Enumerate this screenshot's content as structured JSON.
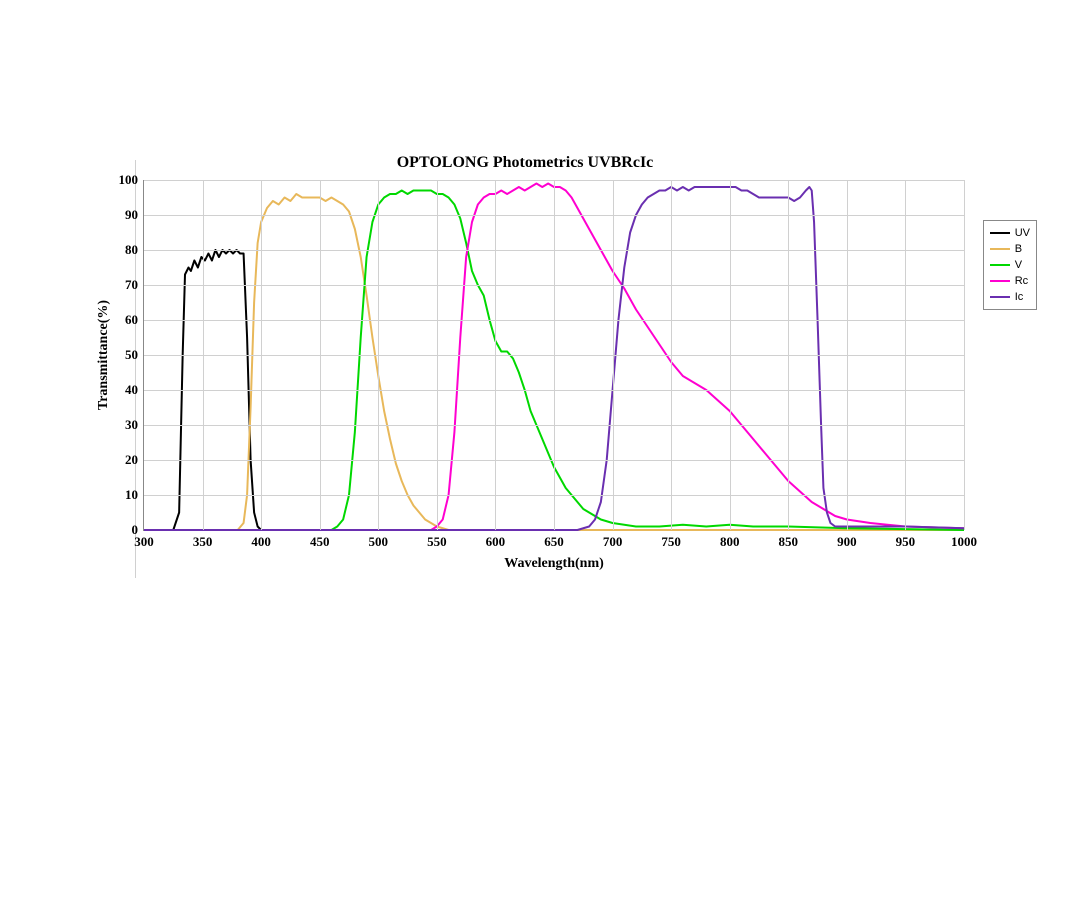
{
  "chart": {
    "type": "line",
    "title": "OPTOLONG Photometrics UVBRcIc",
    "title_fontsize": 16,
    "xlabel": "Wavelength(nm)",
    "ylabel": "Transmittance(%)",
    "label_fontsize": 14,
    "tick_fontsize": 13,
    "background_color": "#ffffff",
    "grid_color": "#d0d0d0",
    "axis_color": "#888888",
    "line_width": 2,
    "xlim": [
      300,
      1000
    ],
    "ylim": [
      0,
      100
    ],
    "xtick_step": 50,
    "ytick_step": 10,
    "xticks": [
      300,
      350,
      400,
      450,
      500,
      550,
      600,
      650,
      700,
      750,
      800,
      850,
      900,
      950,
      1000
    ],
    "yticks": [
      0,
      10,
      20,
      30,
      40,
      50,
      60,
      70,
      80,
      90,
      100
    ],
    "legend_position": "right",
    "series": [
      {
        "label": "UV",
        "color": "#000000",
        "points": [
          [
            300,
            0
          ],
          [
            320,
            0
          ],
          [
            325,
            0
          ],
          [
            330,
            5
          ],
          [
            333,
            50
          ],
          [
            335,
            73
          ],
          [
            338,
            75
          ],
          [
            340,
            74
          ],
          [
            343,
            77
          ],
          [
            346,
            75
          ],
          [
            349,
            78
          ],
          [
            352,
            77
          ],
          [
            355,
            79
          ],
          [
            358,
            77
          ],
          [
            361,
            80
          ],
          [
            364,
            78
          ],
          [
            367,
            80
          ],
          [
            370,
            79
          ],
          [
            373,
            80
          ],
          [
            376,
            79
          ],
          [
            379,
            80
          ],
          [
            382,
            79
          ],
          [
            385,
            79
          ],
          [
            388,
            55
          ],
          [
            391,
            20
          ],
          [
            394,
            5
          ],
          [
            397,
            1
          ],
          [
            400,
            0
          ],
          [
            1000,
            0
          ]
        ]
      },
      {
        "label": "B",
        "color": "#e8b85a",
        "points": [
          [
            300,
            0
          ],
          [
            380,
            0
          ],
          [
            385,
            2
          ],
          [
            388,
            10
          ],
          [
            391,
            35
          ],
          [
            394,
            65
          ],
          [
            397,
            82
          ],
          [
            400,
            88
          ],
          [
            405,
            92
          ],
          [
            410,
            94
          ],
          [
            415,
            93
          ],
          [
            420,
            95
          ],
          [
            425,
            94
          ],
          [
            430,
            96
          ],
          [
            435,
            95
          ],
          [
            440,
            95
          ],
          [
            445,
            95
          ],
          [
            450,
            95
          ],
          [
            455,
            94
          ],
          [
            460,
            95
          ],
          [
            465,
            94
          ],
          [
            470,
            93
          ],
          [
            475,
            91
          ],
          [
            480,
            86
          ],
          [
            485,
            78
          ],
          [
            490,
            67
          ],
          [
            495,
            55
          ],
          [
            500,
            44
          ],
          [
            505,
            34
          ],
          [
            510,
            26
          ],
          [
            515,
            19
          ],
          [
            520,
            14
          ],
          [
            525,
            10
          ],
          [
            530,
            7
          ],
          [
            535,
            5
          ],
          [
            540,
            3
          ],
          [
            545,
            2
          ],
          [
            550,
            1
          ],
          [
            560,
            0
          ],
          [
            1000,
            0
          ]
        ]
      },
      {
        "label": "V",
        "color": "#00d800",
        "points": [
          [
            300,
            0
          ],
          [
            460,
            0
          ],
          [
            465,
            1
          ],
          [
            470,
            3
          ],
          [
            475,
            10
          ],
          [
            480,
            28
          ],
          [
            485,
            55
          ],
          [
            490,
            78
          ],
          [
            495,
            88
          ],
          [
            500,
            93
          ],
          [
            505,
            95
          ],
          [
            510,
            96
          ],
          [
            515,
            96
          ],
          [
            520,
            97
          ],
          [
            525,
            96
          ],
          [
            530,
            97
          ],
          [
            535,
            97
          ],
          [
            540,
            97
          ],
          [
            545,
            97
          ],
          [
            550,
            96
          ],
          [
            555,
            96
          ],
          [
            560,
            95
          ],
          [
            565,
            93
          ],
          [
            570,
            89
          ],
          [
            575,
            82
          ],
          [
            580,
            74
          ],
          [
            585,
            70
          ],
          [
            590,
            67
          ],
          [
            595,
            60
          ],
          [
            600,
            54
          ],
          [
            605,
            51
          ],
          [
            610,
            51
          ],
          [
            615,
            49
          ],
          [
            620,
            45
          ],
          [
            625,
            40
          ],
          [
            630,
            34
          ],
          [
            635,
            30
          ],
          [
            640,
            26
          ],
          [
            645,
            22
          ],
          [
            650,
            18
          ],
          [
            655,
            15
          ],
          [
            660,
            12
          ],
          [
            665,
            10
          ],
          [
            670,
            8
          ],
          [
            675,
            6
          ],
          [
            680,
            5
          ],
          [
            685,
            4
          ],
          [
            690,
            3
          ],
          [
            700,
            2
          ],
          [
            720,
            1
          ],
          [
            740,
            1
          ],
          [
            760,
            1.5
          ],
          [
            780,
            1
          ],
          [
            800,
            1.5
          ],
          [
            820,
            1
          ],
          [
            850,
            1
          ],
          [
            900,
            0.5
          ],
          [
            1000,
            0
          ]
        ]
      },
      {
        "label": "Rc",
        "color": "#ff00d0",
        "points": [
          [
            300,
            0
          ],
          [
            545,
            0
          ],
          [
            550,
            1
          ],
          [
            555,
            3
          ],
          [
            560,
            10
          ],
          [
            565,
            28
          ],
          [
            570,
            55
          ],
          [
            575,
            78
          ],
          [
            580,
            88
          ],
          [
            585,
            93
          ],
          [
            590,
            95
          ],
          [
            595,
            96
          ],
          [
            600,
            96
          ],
          [
            605,
            97
          ],
          [
            610,
            96
          ],
          [
            615,
            97
          ],
          [
            620,
            98
          ],
          [
            625,
            97
          ],
          [
            630,
            98
          ],
          [
            635,
            99
          ],
          [
            640,
            98
          ],
          [
            645,
            99
          ],
          [
            650,
            98
          ],
          [
            655,
            98
          ],
          [
            660,
            97
          ],
          [
            665,
            95
          ],
          [
            670,
            92
          ],
          [
            675,
            89
          ],
          [
            680,
            86
          ],
          [
            685,
            83
          ],
          [
            690,
            80
          ],
          [
            695,
            77
          ],
          [
            700,
            74
          ],
          [
            710,
            69
          ],
          [
            720,
            63
          ],
          [
            730,
            58
          ],
          [
            740,
            53
          ],
          [
            750,
            48
          ],
          [
            760,
            44
          ],
          [
            770,
            42
          ],
          [
            780,
            40
          ],
          [
            790,
            37
          ],
          [
            800,
            34
          ],
          [
            810,
            30
          ],
          [
            820,
            26
          ],
          [
            830,
            22
          ],
          [
            840,
            18
          ],
          [
            850,
            14
          ],
          [
            860,
            11
          ],
          [
            870,
            8
          ],
          [
            880,
            6
          ],
          [
            890,
            4
          ],
          [
            900,
            3
          ],
          [
            920,
            2
          ],
          [
            950,
            1
          ],
          [
            1000,
            0.5
          ]
        ]
      },
      {
        "label": "Ic",
        "color": "#6a2fb0",
        "points": [
          [
            300,
            0
          ],
          [
            670,
            0
          ],
          [
            680,
            1
          ],
          [
            685,
            3
          ],
          [
            690,
            8
          ],
          [
            695,
            20
          ],
          [
            700,
            40
          ],
          [
            705,
            60
          ],
          [
            710,
            75
          ],
          [
            715,
            85
          ],
          [
            720,
            90
          ],
          [
            725,
            93
          ],
          [
            730,
            95
          ],
          [
            735,
            96
          ],
          [
            740,
            97
          ],
          [
            745,
            97
          ],
          [
            750,
            98
          ],
          [
            755,
            97
          ],
          [
            760,
            98
          ],
          [
            765,
            97
          ],
          [
            770,
            98
          ],
          [
            775,
            98
          ],
          [
            780,
            98
          ],
          [
            785,
            98
          ],
          [
            790,
            98
          ],
          [
            795,
            98
          ],
          [
            800,
            98
          ],
          [
            805,
            98
          ],
          [
            810,
            97
          ],
          [
            815,
            97
          ],
          [
            820,
            96
          ],
          [
            825,
            95
          ],
          [
            830,
            95
          ],
          [
            835,
            95
          ],
          [
            840,
            95
          ],
          [
            845,
            95
          ],
          [
            850,
            95
          ],
          [
            855,
            94
          ],
          [
            860,
            95
          ],
          [
            865,
            97
          ],
          [
            868,
            98
          ],
          [
            870,
            97
          ],
          [
            872,
            88
          ],
          [
            875,
            60
          ],
          [
            878,
            30
          ],
          [
            880,
            12
          ],
          [
            883,
            5
          ],
          [
            886,
            2
          ],
          [
            890,
            1
          ],
          [
            900,
            1
          ],
          [
            920,
            1
          ],
          [
            950,
            1
          ],
          [
            1000,
            0.5
          ]
        ]
      }
    ]
  }
}
